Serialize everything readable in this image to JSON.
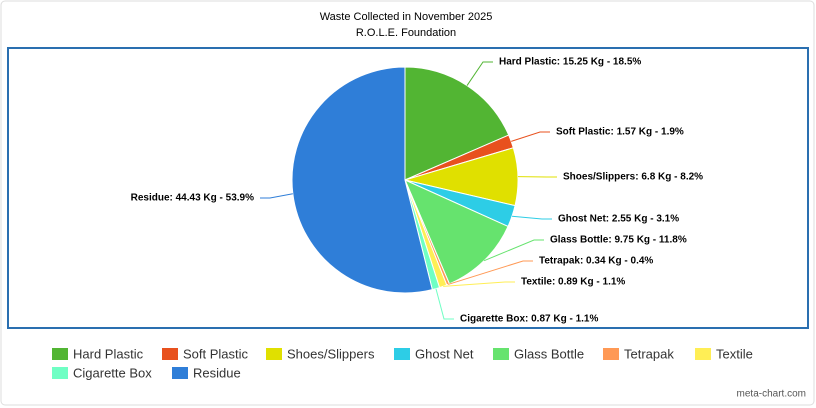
{
  "chart_data": {
    "type": "pie",
    "title": "Waste Collected in November 2025",
    "subtitle": "R.O.L.E. Foundation",
    "categories": [
      "Hard Plastic",
      "Soft Plastic",
      "Shoes/Slippers",
      "Ghost Net",
      "Glass Bottle",
      "Tetrapak",
      "Textile",
      "Cigarette Box",
      "Residue"
    ],
    "values": [
      15.25,
      1.57,
      6.8,
      2.55,
      9.75,
      0.34,
      0.89,
      0.87,
      44.43
    ],
    "value_labels": [
      "Hard Plastic: 15.25 Kg - 18.5%",
      "Soft Plastic: 1.57 Kg - 1.9%",
      "Shoes/Slippers: 6.8 Kg - 8.2%",
      "Ghost Net: 2.55 Kg - 3.1%",
      "Glass Bottle: 9.75 Kg - 11.8%",
      "Tetrapak: 0.34 Kg - 0.4%",
      "Textile: 0.89 Kg - 1.1%",
      "Cigarette Box: 0.87 Kg - 1.1%",
      "Residue: 44.43 Kg - 53.9%"
    ],
    "colors": [
      "#52b533",
      "#e8511e",
      "#e0e000",
      "#2dcde6",
      "#66e36e",
      "#ff9955",
      "#ffee55",
      "#6fffc4",
      "#2f7ed8"
    ],
    "legend": "bottom",
    "credit": "meta-chart.com"
  }
}
